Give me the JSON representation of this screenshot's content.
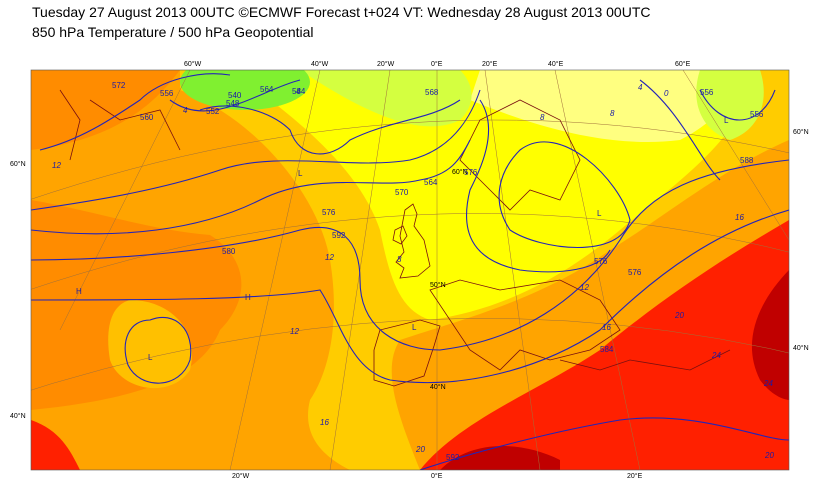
{
  "header": {
    "line1": "Tuesday 27 August 2013 00UTC ©ECMWF Forecast t+024 VT: Wednesday 28 August 2013 00UTC",
    "line2": "850 hPa Temperature / 500 hPa Geopotential"
  },
  "graticule_labels": [
    "60°W",
    "40°W",
    "20°W",
    "0°E",
    "20°E",
    "40°E",
    "60°E",
    "60°N",
    "40°N",
    "60°N",
    "40°N",
    "20°W",
    "0°E",
    "20°E",
    "60°N",
    "50°N",
    "40°N"
  ],
  "geopotential_labels": [
    "540",
    "548",
    "552",
    "556",
    "564",
    "572",
    "584",
    "576",
    "570",
    "564",
    "576",
    "592",
    "580",
    "576",
    "576",
    "584",
    "588",
    "592",
    "556",
    "556",
    "568",
    "560"
  ],
  "temperature_labels": [
    "4",
    "4",
    "8",
    "8",
    "12",
    "12",
    "12",
    "12",
    "16",
    "16",
    "16",
    "20",
    "24",
    "24",
    "20",
    "20",
    "8",
    "4",
    "0"
  ],
  "centers": [
    "H",
    "H",
    "L",
    "L",
    "L",
    "L",
    "L"
  ]
}
